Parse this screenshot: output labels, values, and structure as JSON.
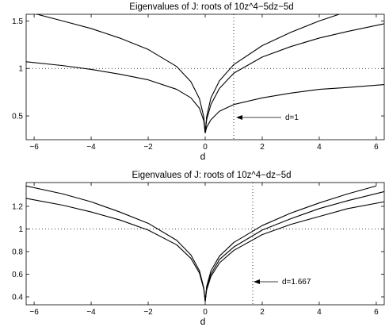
{
  "chart_data": [
    {
      "type": "line",
      "title": "Eigenvalues of J: roots of 10z^4−5dz−5d",
      "xlabel": "d",
      "ylabel": "",
      "xlim": [
        -6.28,
        6.28
      ],
      "ylim": [
        0.25,
        1.57
      ],
      "xticks": [
        -6,
        -4,
        -2,
        0,
        2,
        4,
        6
      ],
      "yticks": [
        0.5,
        1,
        1.5
      ],
      "xtick_labels": [
        "−6",
        "−4",
        "−2",
        "0",
        "2",
        "4",
        "6"
      ],
      "ytick_labels": [
        "0.5",
        "1",
        "1.5"
      ],
      "reference_lines": {
        "y": 1,
        "x": 1,
        "style": "dotted"
      },
      "annotation": {
        "text": "d=1",
        "arrow_to_x": 1
      },
      "series": [
        {
          "side": "left",
          "x": [
            -6.28,
            -5,
            -4,
            -3,
            -2,
            -1,
            -0.5,
            -0.2,
            -0.05,
            0
          ],
          "y": [
            1.6,
            1.5,
            1.42,
            1.32,
            1.2,
            1.02,
            0.86,
            0.68,
            0.49,
            0.32
          ]
        },
        {
          "side": "left",
          "x": [
            -6.28,
            -5,
            -4,
            -3,
            -2,
            -1,
            -0.5,
            -0.2,
            -0.05,
            0
          ],
          "y": [
            1.07,
            1.03,
            0.99,
            0.94,
            0.88,
            0.78,
            0.69,
            0.58,
            0.45,
            0.32
          ]
        },
        {
          "side": "right",
          "x": [
            0,
            0.05,
            0.2,
            0.5,
            1,
            2,
            3,
            4,
            4.7
          ],
          "y": [
            0.32,
            0.49,
            0.69,
            0.87,
            1.04,
            1.24,
            1.38,
            1.5,
            1.57
          ]
        },
        {
          "side": "right",
          "x": [
            0,
            0.05,
            0.2,
            0.5,
            1,
            2,
            3,
            4,
            5,
            6.28
          ],
          "y": [
            0.32,
            0.46,
            0.62,
            0.79,
            0.95,
            1.12,
            1.23,
            1.32,
            1.39,
            1.47
          ]
        },
        {
          "side": "right",
          "x": [
            0,
            0.05,
            0.2,
            0.5,
            1,
            2,
            3,
            4,
            5,
            6.28
          ],
          "y": [
            0.32,
            0.38,
            0.46,
            0.55,
            0.62,
            0.69,
            0.74,
            0.78,
            0.8,
            0.83
          ]
        }
      ]
    },
    {
      "type": "line",
      "title": "Eigenvalues of J: roots of 10z^4−dz−5d",
      "xlabel": "d",
      "ylabel": "",
      "xlim": [
        -6.28,
        6.28
      ],
      "ylim": [
        0.33,
        1.41
      ],
      "xticks": [
        -6,
        -4,
        -2,
        0,
        2,
        4,
        6
      ],
      "yticks": [
        0.4,
        0.6,
        0.8,
        1,
        1.2
      ],
      "xtick_labels": [
        "−6",
        "−4",
        "−2",
        "0",
        "2",
        "4",
        "6"
      ],
      "ytick_labels": [
        "0.4",
        "0.6",
        "0.8",
        "1",
        "1.2"
      ],
      "reference_lines": {
        "y": 1,
        "x": 1.667,
        "style": "dotted"
      },
      "annotation": {
        "text": "d=1.667",
        "arrow_to_x": 1.667
      },
      "series": [
        {
          "side": "left",
          "x": [
            -6.28,
            -5,
            -4,
            -3,
            -2,
            -1,
            -0.5,
            -0.2,
            -0.05,
            0
          ],
          "y": [
            1.38,
            1.31,
            1.24,
            1.15,
            1.05,
            0.9,
            0.77,
            0.63,
            0.48,
            0.36
          ]
        },
        {
          "side": "left",
          "x": [
            -6.28,
            -5,
            -4,
            -3,
            -2,
            -1,
            -0.5,
            -0.2,
            -0.05,
            0
          ],
          "y": [
            1.27,
            1.21,
            1.15,
            1.08,
            0.99,
            0.86,
            0.74,
            0.61,
            0.47,
            0.36
          ]
        },
        {
          "side": "right",
          "x": [
            0,
            0.05,
            0.2,
            0.5,
            1,
            2,
            3,
            4,
            5,
            6
          ],
          "y": [
            0.36,
            0.49,
            0.63,
            0.76,
            0.88,
            1.03,
            1.14,
            1.23,
            1.31,
            1.38
          ]
        },
        {
          "side": "right",
          "x": [
            0,
            0.05,
            0.2,
            0.5,
            1,
            2,
            3,
            4,
            5,
            6.28
          ],
          "y": [
            0.36,
            0.47,
            0.6,
            0.73,
            0.84,
            0.99,
            1.09,
            1.18,
            1.25,
            1.33
          ]
        },
        {
          "side": "right",
          "x": [
            0,
            0.05,
            0.2,
            0.5,
            1,
            2,
            3,
            4,
            5,
            6.28
          ],
          "y": [
            0.36,
            0.46,
            0.58,
            0.7,
            0.81,
            0.95,
            1.04,
            1.11,
            1.18,
            1.24
          ]
        }
      ]
    }
  ]
}
